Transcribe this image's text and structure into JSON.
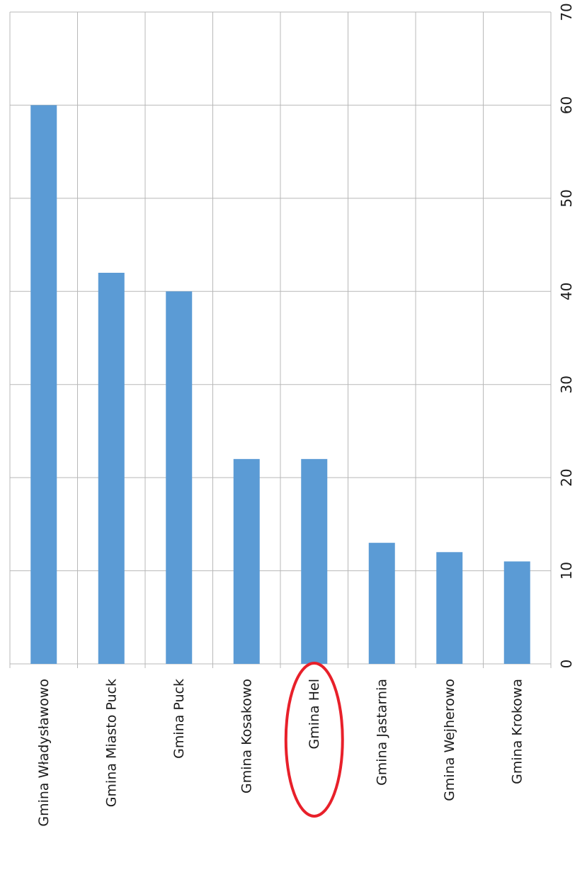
{
  "chart_data": {
    "type": "bar",
    "orientation": "horizontal",
    "title": "",
    "xlabel": "",
    "ylabel": "",
    "categories": [
      "Gmina Władysławowo",
      "Gmina Miasto Puck",
      "Gmina Puck",
      "Gmina Kosakowo",
      "Gmina Hel",
      "Gmina Jastarnia",
      "Gmina Wejherowo",
      "Gmina Krokowa"
    ],
    "values": [
      60,
      42,
      40,
      22,
      22,
      13,
      12,
      11
    ],
    "value_axis": {
      "range": [
        0,
        70
      ],
      "ticks": [
        "0",
        "10",
        "20",
        "30",
        "40",
        "50",
        "60",
        "70"
      ]
    },
    "grid": true,
    "legend": "none",
    "highlighted_category": "Gmina Hel",
    "highlight_shape": "ellipse",
    "colors": {
      "bar": "#5b9bd5",
      "highlight": "#e8202a",
      "grid": "#b8b8b8"
    }
  }
}
